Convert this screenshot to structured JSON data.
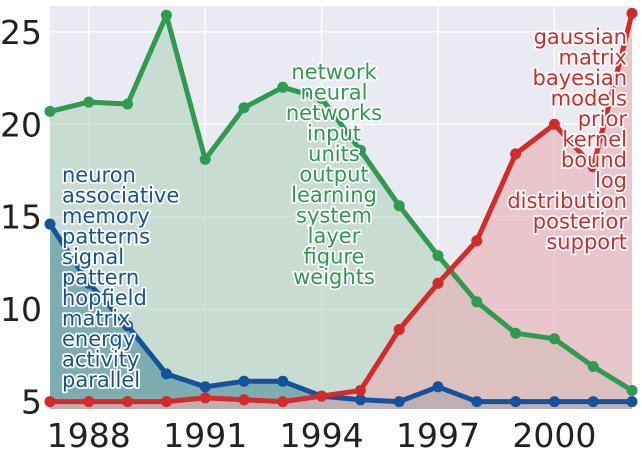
{
  "chart_data": {
    "type": "area",
    "x": [
      1987,
      1988,
      1989,
      1990,
      1991,
      1992,
      1993,
      1994,
      1995,
      1996,
      1997,
      1998,
      1999,
      2000,
      2001,
      2002
    ],
    "xlim": [
      1987,
      2002
    ],
    "ylim": [
      4.6,
      26.4
    ],
    "x_ticks": [
      1988,
      1991,
      1994,
      1997,
      2000
    ],
    "y_ticks": [
      5,
      10,
      15,
      20,
      25
    ],
    "grid": true,
    "series": [
      {
        "color": "#2e9a52",
        "fill": "#b5d3bf",
        "values": [
          20.7,
          21.2,
          21.1,
          25.9,
          18.1,
          20.9,
          22.0,
          21.4,
          18.6,
          15.6,
          12.9,
          10.4,
          8.7,
          8.4,
          6.9,
          5.6
        ],
        "words": [
          "network",
          "neural",
          "networks",
          "input",
          "units",
          "output",
          "learning",
          "system",
          "layer",
          "figure",
          "weights"
        ]
      },
      {
        "color": "#14539c",
        "fill": "#4f8f99",
        "values": [
          14.6,
          11.4,
          9.1,
          6.5,
          5.8,
          6.1,
          6.1,
          5.3,
          5.1,
          5.0,
          5.8,
          5.0,
          5.0,
          5.0,
          5.0,
          5.0
        ],
        "words": [
          "neuron",
          "associative",
          "memory",
          "patterns",
          "signal",
          "pattern",
          "hopfield",
          "matrix",
          "energy",
          "activity",
          "parallel"
        ]
      },
      {
        "color": "#d42a2a",
        "fill": "#e8aeb4",
        "values": [
          5.0,
          5.0,
          5.0,
          5.0,
          5.2,
          5.1,
          5.0,
          5.3,
          5.6,
          8.9,
          11.4,
          13.7,
          18.4,
          20.0,
          17.7,
          26.0
        ],
        "words": [
          "gaussian",
          "matrix",
          "bayesian",
          "models",
          "prior",
          "kernel",
          "bound",
          "log",
          "distribution",
          "posterior",
          "support"
        ]
      }
    ]
  }
}
